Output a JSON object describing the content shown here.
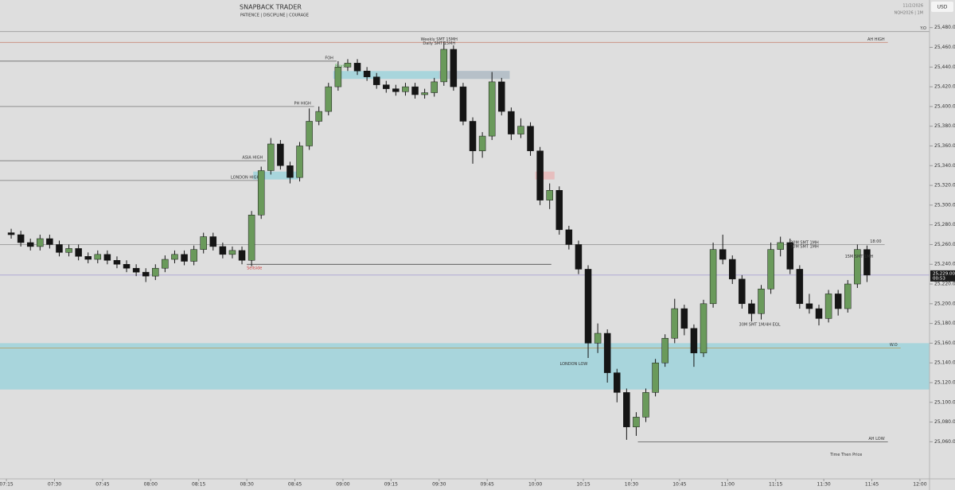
{
  "chart_data": {
    "type": "candlestick",
    "title": "SNAPBACK TRADER",
    "subtitle": "PATIENCE | DISCIPLINE | COURAGE",
    "date": "11/2/2026",
    "symbol": "NQH2026 | 1M",
    "currency": "USD",
    "up_color": "#6a9a5b",
    "down_color": "#151515",
    "xlim": [
      "07:13",
      "12:03"
    ],
    "xticks": [
      "07:15",
      "07:30",
      "07:45",
      "08:00",
      "08:15",
      "08:30",
      "08:45",
      "09:00",
      "09:15",
      "09:30",
      "09:45",
      "10:00",
      "10:15",
      "10:30",
      "10:45",
      "11:00",
      "11:15",
      "11:30",
      "11:45",
      "12:00"
    ],
    "ylim": [
      25024,
      25508
    ],
    "yticks": [
      {
        "value": 25060,
        "label": "25,060.00"
      },
      {
        "value": 25080,
        "label": "25,080.00"
      },
      {
        "value": 25100,
        "label": "25,100.00"
      },
      {
        "value": 25120,
        "label": "25,120.00"
      },
      {
        "value": 25140,
        "label": "25,140.00"
      },
      {
        "value": 25160,
        "label": "25,160.00"
      },
      {
        "value": 25180,
        "label": "25,180.00"
      },
      {
        "value": 25200,
        "label": "25,200.00"
      },
      {
        "value": 25220,
        "label": "25,220.00"
      },
      {
        "value": 25240,
        "label": "25,240.00"
      },
      {
        "value": 25260,
        "label": "25,260.00"
      },
      {
        "value": 25280,
        "label": "25,280.00"
      },
      {
        "value": 25300,
        "label": "25,300.00"
      },
      {
        "value": 25320,
        "label": "25,320.00"
      },
      {
        "value": 25340,
        "label": "25,340.00"
      },
      {
        "value": 25360,
        "label": "25,360.00"
      },
      {
        "value": 25380,
        "label": "25,380.00"
      },
      {
        "value": 25400,
        "label": "25,400.00"
      },
      {
        "value": 25420,
        "label": "25,420.00"
      },
      {
        "value": 25440,
        "label": "25,440.00"
      },
      {
        "value": 25460,
        "label": "25,460.00"
      },
      {
        "value": 25480,
        "label": "25,480.00"
      }
    ],
    "x": [
      "07:15",
      "07:18",
      "07:21",
      "07:24",
      "07:27",
      "07:30",
      "07:33",
      "07:36",
      "07:39",
      "07:42",
      "07:45",
      "07:48",
      "07:51",
      "07:54",
      "07:57",
      "08:00",
      "08:03",
      "08:06",
      "08:09",
      "08:12",
      "08:15",
      "08:18",
      "08:21",
      "08:24",
      "08:27",
      "08:30",
      "08:33",
      "08:36",
      "08:39",
      "08:42",
      "08:45",
      "08:48",
      "08:51",
      "08:54",
      "08:57",
      "09:00",
      "09:03",
      "09:06",
      "09:09",
      "09:12",
      "09:15",
      "09:18",
      "09:21",
      "09:24",
      "09:27",
      "09:30",
      "09:33",
      "09:36",
      "09:39",
      "09:42",
      "09:45",
      "09:48",
      "09:51",
      "09:54",
      "09:57",
      "10:00",
      "10:03",
      "10:06",
      "10:09",
      "10:12",
      "10:15",
      "10:18",
      "10:21",
      "10:24",
      "10:27",
      "10:30",
      "10:33",
      "10:36",
      "10:39",
      "10:42",
      "10:45",
      "10:48",
      "10:51",
      "10:54",
      "10:57",
      "11:00",
      "11:03",
      "11:06",
      "11:09",
      "11:12",
      "11:15",
      "11:18",
      "11:21",
      "11:24",
      "11:27",
      "11:30",
      "11:33",
      "11:36",
      "11:39",
      "11:42"
    ],
    "open": [
      25272,
      25270,
      25262,
      25258,
      25266,
      25260,
      25252,
      25256,
      25248,
      25245,
      25250,
      25244,
      25240,
      25236,
      25232,
      25228,
      25236,
      25245,
      25250,
      25243,
      25255,
      25268,
      25258,
      25250,
      25254,
      25244,
      25290,
      25335,
      25362,
      25340,
      25328,
      25360,
      25385,
      25395,
      25420,
      25440,
      25444,
      25436,
      25430,
      25422,
      25418,
      25415,
      25420,
      25412,
      25414,
      25425,
      25458,
      25420,
      25385,
      25355,
      25370,
      25425,
      25395,
      25372,
      25380,
      25355,
      25305,
      25315,
      25275,
      25260,
      25235,
      25160,
      25170,
      25130,
      25110,
      25075,
      25085,
      25110,
      25140,
      25165,
      25195,
      25175,
      25150,
      25200,
      25255,
      25245,
      25225,
      25200,
      25190,
      25215,
      25255,
      25262,
      25235,
      25200,
      25195,
      25185,
      25210,
      25195,
      25220,
      25255
    ],
    "high": [
      25276,
      25274,
      25266,
      25270,
      25270,
      25264,
      25260,
      25260,
      25252,
      25254,
      25254,
      25248,
      25244,
      25240,
      25236,
      25240,
      25249,
      25254,
      25254,
      25259,
      25272,
      25272,
      25262,
      25258,
      25258,
      25294,
      25339,
      25368,
      25366,
      25344,
      25364,
      25398,
      25400,
      25424,
      25446,
      25448,
      25448,
      25440,
      25434,
      25426,
      25422,
      25424,
      25424,
      25418,
      25429,
      25466,
      25462,
      25424,
      25389,
      25374,
      25435,
      25429,
      25399,
      25388,
      25384,
      25359,
      25322,
      25319,
      25279,
      25264,
      25239,
      25180,
      25174,
      25134,
      25114,
      25090,
      25114,
      25144,
      25169,
      25205,
      25199,
      25179,
      25204,
      25262,
      25270,
      25249,
      25229,
      25204,
      25219,
      25262,
      25268,
      25266,
      25239,
      25210,
      25199,
      25214,
      25214,
      25224,
      25260,
      25259
    ],
    "low": [
      25266,
      25258,
      25254,
      25254,
      25256,
      25248,
      25248,
      25244,
      25241,
      25241,
      25240,
      25236,
      25232,
      25228,
      25222,
      25224,
      25232,
      25241,
      25239,
      25239,
      25251,
      25254,
      25246,
      25246,
      25240,
      25238,
      25286,
      25331,
      25336,
      25322,
      25324,
      25356,
      25381,
      25391,
      25416,
      25436,
      25432,
      25426,
      25418,
      25414,
      25411,
      25411,
      25408,
      25408,
      25410,
      25421,
      25416,
      25381,
      25342,
      25348,
      25366,
      25391,
      25366,
      25368,
      25350,
      25300,
      25296,
      25270,
      25255,
      25230,
      25145,
      25150,
      25120,
      25100,
      25062,
      25066,
      25080,
      25106,
      25136,
      25160,
      25168,
      25136,
      25146,
      25196,
      25240,
      25220,
      25195,
      25182,
      25184,
      25210,
      25248,
      25230,
      25195,
      25190,
      25178,
      25181,
      25188,
      25191,
      25216,
      25222
    ],
    "close": [
      25270,
      25262,
      25258,
      25266,
      25260,
      25252,
      25256,
      25248,
      25245,
      25250,
      25244,
      25240,
      25236,
      25232,
      25228,
      25236,
      25245,
      25250,
      25243,
      25255,
      25268,
      25258,
      25250,
      25254,
      25244,
      25290,
      25335,
      25362,
      25340,
      25328,
      25360,
      25385,
      25395,
      25420,
      25440,
      25444,
      25436,
      25430,
      25422,
      25418,
      25415,
      25420,
      25412,
      25414,
      25425,
      25458,
      25420,
      25385,
      25355,
      25370,
      25425,
      25395,
      25372,
      25380,
      25355,
      25305,
      25315,
      25275,
      25260,
      25235,
      25160,
      25170,
      25130,
      25110,
      25075,
      25085,
      25110,
      25140,
      25165,
      25195,
      25175,
      25150,
      25200,
      25255,
      25245,
      25225,
      25200,
      25190,
      25215,
      25255,
      25262,
      25235,
      25200,
      25195,
      25185,
      25210,
      25195,
      25220,
      25255,
      25229
    ],
    "zones": [
      {
        "start": "07:13",
        "end": "12:03",
        "top": 25160,
        "bottom": 25113,
        "color": "#9fd3dc"
      },
      {
        "start": "08:57",
        "end": "09:52",
        "top": 25436,
        "bottom": 25428,
        "color": "#9fd3dc"
      },
      {
        "start": "09:30",
        "end": "09:52",
        "top": 25436,
        "bottom": 25428,
        "color": "#b8bcc4"
      },
      {
        "start": "08:32",
        "end": "08:46",
        "top": 25334,
        "bottom": 25326,
        "color": "#9fd3dc"
      },
      {
        "start": "10:00",
        "end": "10:06",
        "top": 25334,
        "bottom": 25326,
        "color": "#e8b8b8"
      }
    ],
    "levels": [
      {
        "label": "Y.O",
        "price": 25476,
        "start": "07:13",
        "end": "12:03",
        "color": "#9a9a9a"
      },
      {
        "label": "AH HIGH",
        "price": 25465,
        "start": "07:13",
        "end": "11:50",
        "color": "#c98a7a"
      },
      {
        "label": "FOH",
        "price": 25446,
        "start": "07:13",
        "end": "08:58",
        "color": "#555555"
      },
      {
        "label": "PH HIGH",
        "price": 25400,
        "start": "07:13",
        "end": "08:51",
        "color": "#777777"
      },
      {
        "label": "ASIA HIGH",
        "price": 25345,
        "start": "07:13",
        "end": "08:36",
        "color": "#777777"
      },
      {
        "label": "LONDON HIGH",
        "price": 25325,
        "start": "07:13",
        "end": "08:35",
        "color": "#777777"
      },
      {
        "label": "18:00",
        "price": 25260,
        "start": "07:13",
        "end": "11:49",
        "color": "#999999"
      },
      {
        "label": "W.O",
        "price": 25155,
        "start": "07:13",
        "end": "11:54",
        "color": "#b89a5a"
      },
      {
        "label": "AH LOW",
        "price": 25060,
        "start": "10:32",
        "end": "11:50",
        "color": "#555555"
      }
    ],
    "sellside": {
      "label": "Sellside",
      "price": 25240,
      "start": "08:30",
      "end": "10:05",
      "color": "#d23b3b"
    },
    "buyside": {
      "label": "Buyside",
      "price": 25446,
      "start": "09:00",
      "color": "#3aa53a"
    },
    "last_price": {
      "value": 25229,
      "label": "25,229.00",
      "countdown": "00:53",
      "color": "#6b5cc7"
    },
    "annotations": [
      {
        "text": "Weekly SMT 15MH",
        "time": "09:30",
        "price": 25468
      },
      {
        "text": "Daily SMT 15MH",
        "time": "09:30",
        "price": 25464
      },
      {
        "text": "LONDON LOW",
        "time": "10:12",
        "price": 25139
      },
      {
        "text": "30M SMT 1MH",
        "time": "11:24",
        "price": 25262
      },
      {
        "text": "30M SMT 1MH",
        "time": "11:24",
        "price": 25258
      },
      {
        "text": "15M SMT 1MH",
        "time": "11:41",
        "price": 25248
      },
      {
        "text": "30M SMT 1M/4H EQL",
        "time": "11:10",
        "price": 25179
      },
      {
        "text": "Time Then Price",
        "time": "11:37",
        "price": 25047
      }
    ]
  }
}
